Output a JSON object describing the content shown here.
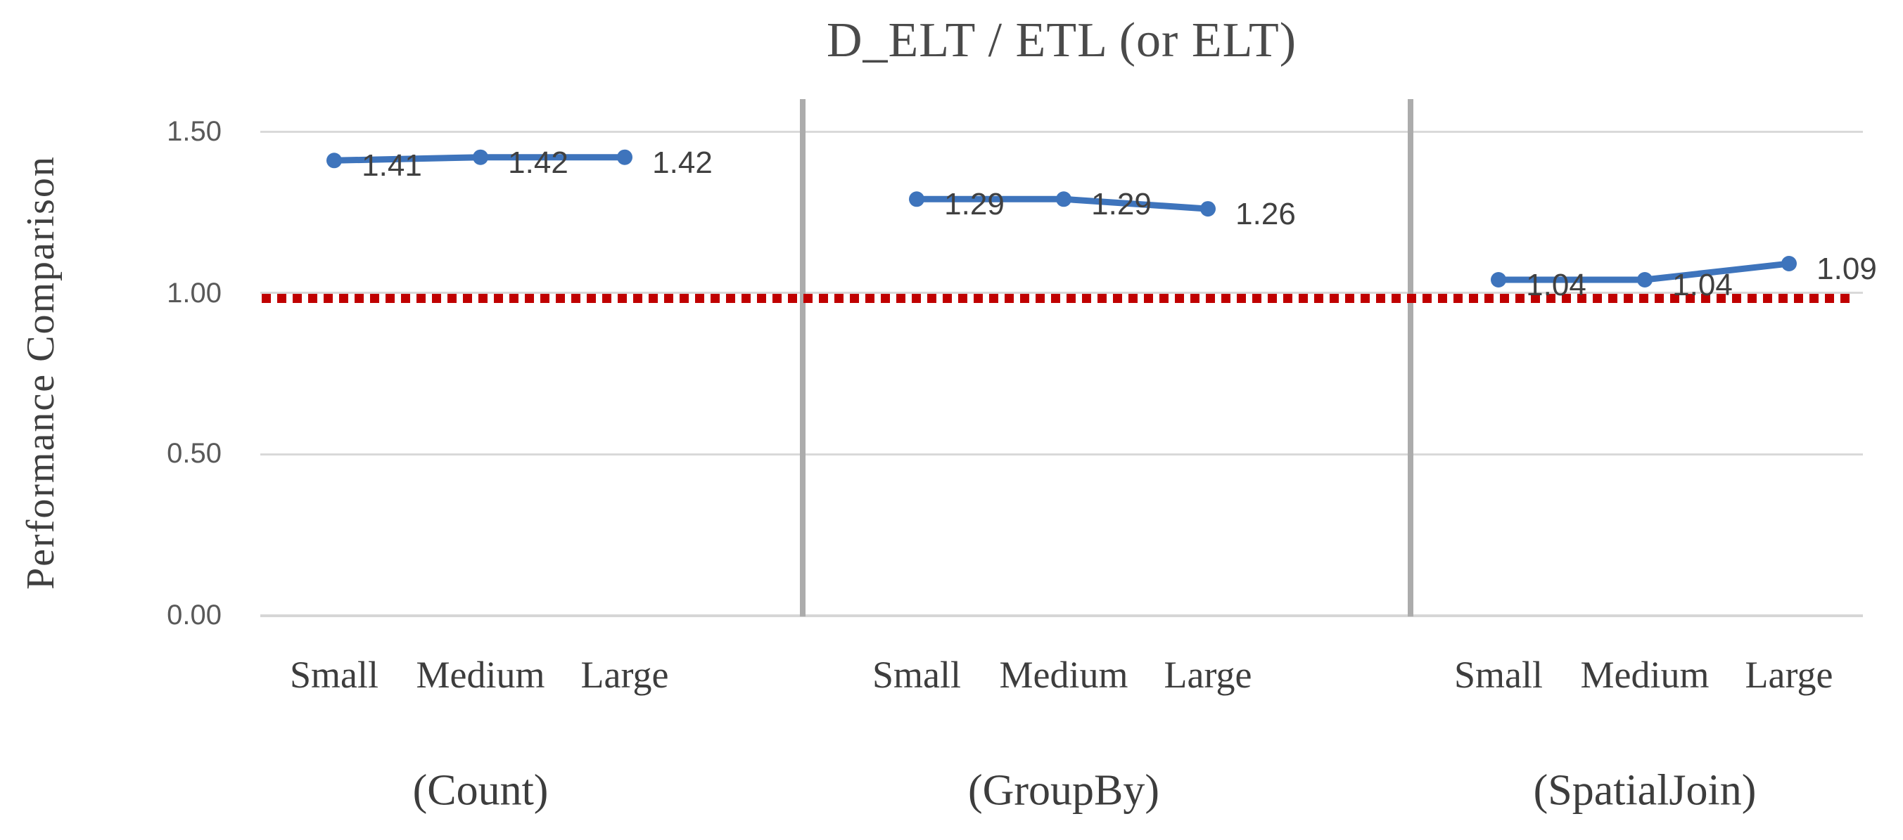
{
  "chart": {
    "title": "D_ELT / ETL (or ELT)",
    "y_axis_label": "Performance Comparison",
    "y_ticks": [
      "1.50",
      "1.00",
      "0.50",
      "0.00"
    ]
  },
  "chart_data": {
    "type": "line",
    "title": "D_ELT / ETL (or ELT)",
    "xlabel": "",
    "ylabel": "Performance Comparison",
    "ylim": [
      0,
      1.6
    ],
    "yticks": [
      1.5,
      1.0,
      0.5,
      0.0
    ],
    "grid": true,
    "legend_position": "none",
    "reference_line": {
      "value": 1.0,
      "style": "dotted",
      "color": "#C00000"
    },
    "groups": [
      {
        "label": "(Count)",
        "categories": [
          "Small",
          "Medium",
          "Large"
        ],
        "values": [
          1.41,
          1.42,
          1.42
        ],
        "data_labels": [
          "1.41",
          "1.42",
          "1.42"
        ]
      },
      {
        "label": "(GroupBy)",
        "categories": [
          "Small",
          "Medium",
          "Large"
        ],
        "values": [
          1.29,
          1.29,
          1.26
        ],
        "data_labels": [
          "1.29",
          "1.29",
          "1.26"
        ]
      },
      {
        "label": "(SpatialJoin)",
        "categories": [
          "Small",
          "Medium",
          "Large"
        ],
        "values": [
          1.04,
          1.04,
          1.09
        ],
        "data_labels": [
          "1.04",
          "1.04",
          "1.09"
        ]
      }
    ]
  },
  "colors": {
    "series_line": "#3E74BC",
    "reference_line": "#C00000",
    "gridline": "#D9D9D9",
    "panel_divider": "#ACACAC",
    "tick_text": "#595959",
    "label_text": "#3F3F3F"
  }
}
